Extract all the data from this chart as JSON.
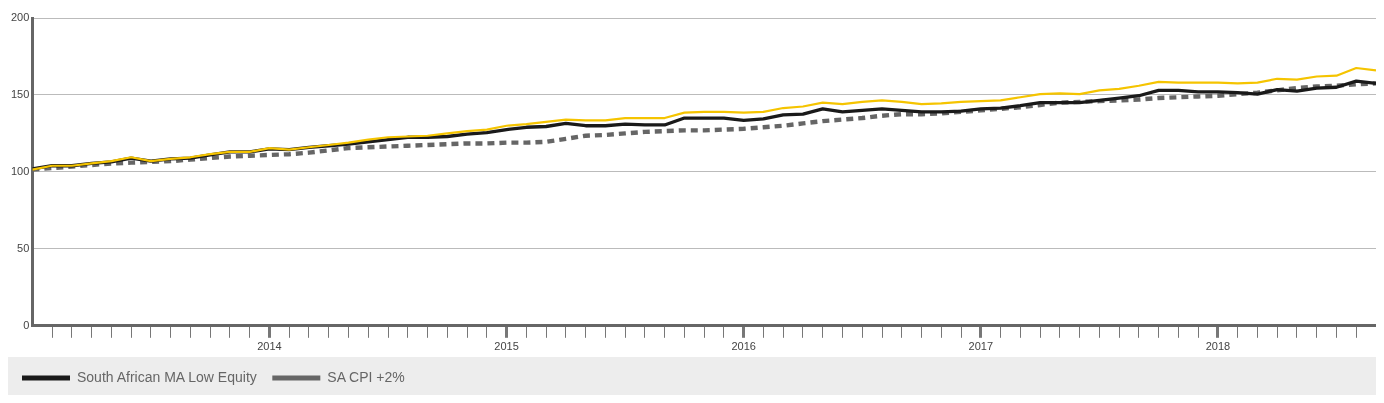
{
  "chart_data": {
    "type": "line",
    "x": [
      "2013-01",
      "2013-02",
      "2013-03",
      "2013-04",
      "2013-05",
      "2013-06",
      "2013-07",
      "2013-08",
      "2013-09",
      "2013-10",
      "2013-11",
      "2013-12",
      "2014-01",
      "2014-02",
      "2014-03",
      "2014-04",
      "2014-05",
      "2014-06",
      "2014-07",
      "2014-08",
      "2014-09",
      "2014-10",
      "2014-11",
      "2014-12",
      "2015-01",
      "2015-02",
      "2015-03",
      "2015-04",
      "2015-05",
      "2015-06",
      "2015-07",
      "2015-08",
      "2015-09",
      "2015-10",
      "2015-11",
      "2015-12",
      "2016-01",
      "2016-02",
      "2016-03",
      "2016-04",
      "2016-05",
      "2016-06",
      "2016-07",
      "2016-08",
      "2016-09",
      "2016-10",
      "2016-11",
      "2016-12",
      "2017-01",
      "2017-02",
      "2017-03",
      "2017-04",
      "2017-05",
      "2017-06",
      "2017-07",
      "2017-08",
      "2017-09",
      "2017-10",
      "2017-11",
      "2017-12",
      "2018-01",
      "2018-02",
      "2018-03",
      "2018-04",
      "2018-05",
      "2018-06",
      "2018-07",
      "2018-08",
      "2018-09"
    ],
    "series": [
      {
        "color": "#f5c400",
        "line_style": "solid",
        "values": [
          101.5,
          104,
          104,
          105.5,
          107,
          109.5,
          107,
          108.5,
          109.5,
          111.5,
          113,
          113,
          115.5,
          114.5,
          116,
          117.5,
          119,
          121,
          122.5,
          123,
          123.5,
          125,
          126.5,
          127.5,
          130,
          131,
          132.5,
          134,
          133.5,
          133.5,
          135,
          135,
          135,
          138.5,
          139,
          139,
          138.5,
          139,
          141.5,
          142.5,
          145,
          144,
          145.5,
          146.5,
          145.5,
          144,
          144.5,
          145.5,
          146,
          146.5,
          148.5,
          150.5,
          151,
          150.5,
          153,
          154,
          156,
          158.5,
          158,
          158,
          158,
          157.5,
          158,
          160.5,
          160,
          162,
          162.5,
          167.5,
          166
        ]
      },
      {
        "name": "South African MA Low Equity",
        "color": "#1a1a1a",
        "line_style": "solid",
        "values": [
          102,
          104,
          104,
          105.5,
          106.5,
          109,
          107,
          108.5,
          109,
          111,
          113,
          113,
          115,
          114.5,
          116,
          117,
          118,
          119.5,
          121,
          122.5,
          122.5,
          123,
          124.5,
          125.5,
          127.5,
          129,
          129.5,
          131.5,
          130,
          130,
          131,
          130.5,
          130.5,
          135,
          135,
          135,
          133.5,
          134.5,
          137,
          137.5,
          141,
          139,
          140,
          141,
          140,
          139,
          139,
          139.5,
          141,
          141.5,
          143,
          145,
          145,
          145,
          146.5,
          148,
          149.5,
          153,
          153,
          152,
          152,
          151.5,
          150.5,
          153.5,
          152.5,
          154.5,
          155,
          159,
          157.5
        ]
      },
      {
        "name": "SA CPI +2%",
        "color": "#666666",
        "line_style": "dashed",
        "values": [
          101.5,
          102.5,
          103.5,
          104.5,
          105.5,
          106,
          106.5,
          107,
          108,
          109,
          110,
          110.5,
          111,
          111.5,
          112.5,
          114,
          115.5,
          116,
          116.5,
          117,
          117.5,
          118,
          118.5,
          118.5,
          119,
          119,
          119.5,
          121.5,
          123.5,
          124,
          125,
          126,
          126.5,
          127,
          127,
          127.5,
          128,
          129,
          130,
          131.5,
          133,
          134,
          135,
          136.5,
          137.5,
          137.5,
          138,
          139,
          140,
          141,
          142,
          143.5,
          145,
          145.5,
          146,
          146.5,
          147,
          148,
          148.5,
          149,
          149.5,
          150.5,
          151.5,
          153,
          154.5,
          155.5,
          156,
          157,
          157.5
        ]
      }
    ],
    "xlim": [
      "2013-01",
      "2018-09"
    ],
    "xticks": [
      {
        "value": "2013-02",
        "label": null
      },
      {
        "value": "2013-03",
        "label": null
      },
      {
        "value": "2013-04",
        "label": null
      },
      {
        "value": "2013-05",
        "label": null
      },
      {
        "value": "2013-06",
        "label": null
      },
      {
        "value": "2013-07",
        "label": null
      },
      {
        "value": "2013-08",
        "label": null
      },
      {
        "value": "2013-09",
        "label": null
      },
      {
        "value": "2013-10",
        "label": null
      },
      {
        "value": "2013-11",
        "label": null
      },
      {
        "value": "2013-12",
        "label": null
      },
      {
        "value": "2014-01",
        "label": "2014"
      },
      {
        "value": "2014-02",
        "label": null
      },
      {
        "value": "2014-03",
        "label": null
      },
      {
        "value": "2014-04",
        "label": null
      },
      {
        "value": "2014-05",
        "label": null
      },
      {
        "value": "2014-06",
        "label": null
      },
      {
        "value": "2014-07",
        "label": null
      },
      {
        "value": "2014-08",
        "label": null
      },
      {
        "value": "2014-09",
        "label": null
      },
      {
        "value": "2014-10",
        "label": null
      },
      {
        "value": "2014-11",
        "label": null
      },
      {
        "value": "2014-12",
        "label": null
      },
      {
        "value": "2015-01",
        "label": "2015"
      },
      {
        "value": "2015-02",
        "label": null
      },
      {
        "value": "2015-03",
        "label": null
      },
      {
        "value": "2015-04",
        "label": null
      },
      {
        "value": "2015-05",
        "label": null
      },
      {
        "value": "2015-06",
        "label": null
      },
      {
        "value": "2015-07",
        "label": null
      },
      {
        "value": "2015-08",
        "label": null
      },
      {
        "value": "2015-09",
        "label": null
      },
      {
        "value": "2015-10",
        "label": null
      },
      {
        "value": "2015-11",
        "label": null
      },
      {
        "value": "2015-12",
        "label": null
      },
      {
        "value": "2016-01",
        "label": "2016"
      },
      {
        "value": "2016-02",
        "label": null
      },
      {
        "value": "2016-03",
        "label": null
      },
      {
        "value": "2016-04",
        "label": null
      },
      {
        "value": "2016-05",
        "label": null
      },
      {
        "value": "2016-06",
        "label": null
      },
      {
        "value": "2016-07",
        "label": null
      },
      {
        "value": "2016-08",
        "label": null
      },
      {
        "value": "2016-09",
        "label": null
      },
      {
        "value": "2016-10",
        "label": null
      },
      {
        "value": "2016-11",
        "label": null
      },
      {
        "value": "2016-12",
        "label": null
      },
      {
        "value": "2017-01",
        "label": "2017"
      },
      {
        "value": "2017-02",
        "label": null
      },
      {
        "value": "2017-03",
        "label": null
      },
      {
        "value": "2017-04",
        "label": null
      },
      {
        "value": "2017-05",
        "label": null
      },
      {
        "value": "2017-06",
        "label": null
      },
      {
        "value": "2017-07",
        "label": null
      },
      {
        "value": "2017-08",
        "label": null
      },
      {
        "value": "2017-09",
        "label": null
      },
      {
        "value": "2017-10",
        "label": null
      },
      {
        "value": "2017-11",
        "label": null
      },
      {
        "value": "2017-12",
        "label": null
      },
      {
        "value": "2018-01",
        "label": "2018"
      },
      {
        "value": "2018-02",
        "label": null
      },
      {
        "value": "2018-03",
        "label": null
      },
      {
        "value": "2018-04",
        "label": null
      },
      {
        "value": "2018-05",
        "label": null
      },
      {
        "value": "2018-06",
        "label": null
      },
      {
        "value": "2018-07",
        "label": null
      },
      {
        "value": "2018-08",
        "label": null
      }
    ],
    "ylim": [
      0,
      200
    ],
    "yticks": [
      0,
      50,
      100,
      150,
      200
    ],
    "grid": "y",
    "legend": "bottom",
    "marker": "none"
  }
}
